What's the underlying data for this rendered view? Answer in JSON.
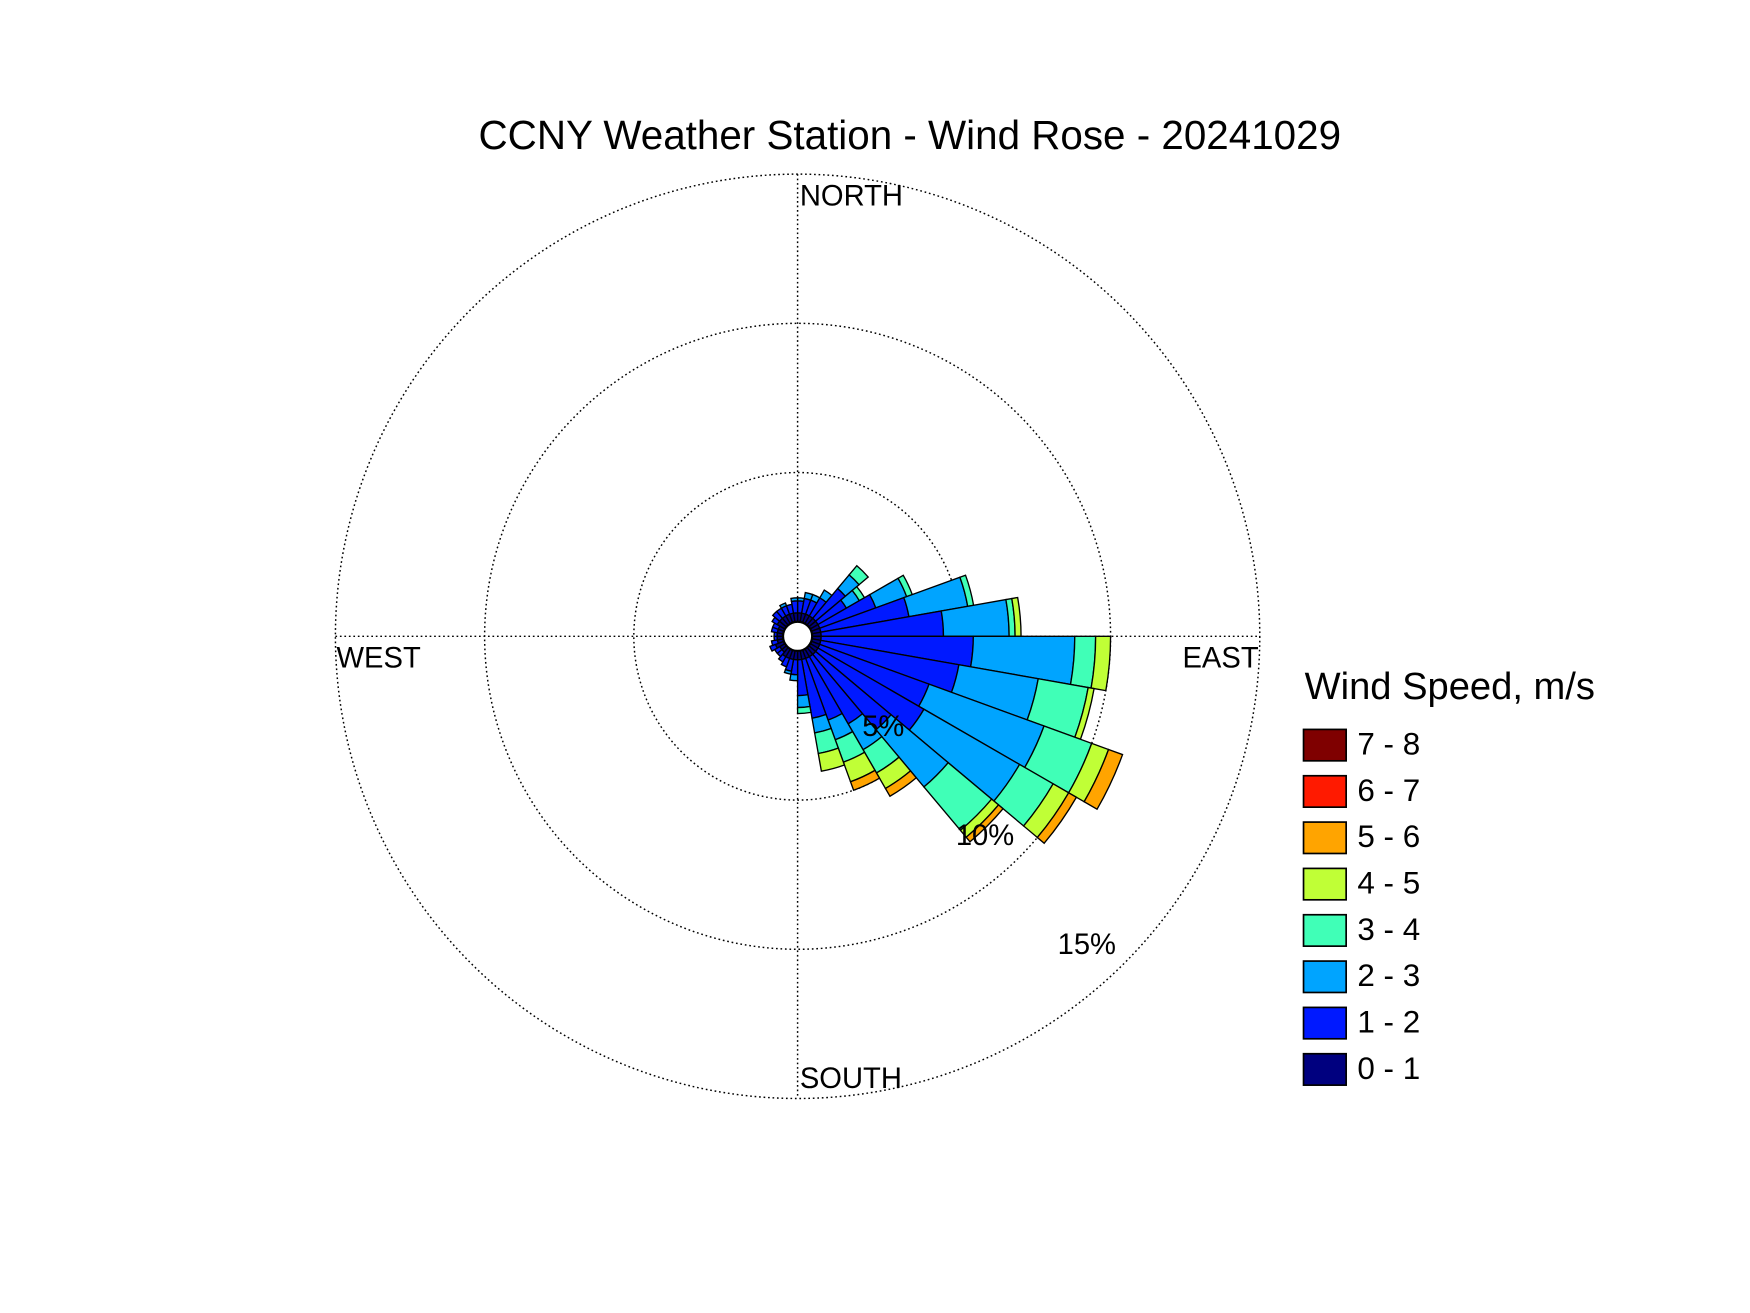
{
  "chart_data": {
    "type": "windrose",
    "title": "CCNY Weather Station - Wind Rose - 20241029",
    "direction_labels": [
      "NORTH",
      "EAST",
      "SOUTH",
      "WEST"
    ],
    "legend_title": "Wind Speed, m/s",
    "directions": [
      5,
      15,
      25,
      35,
      45,
      55,
      65,
      75,
      85,
      95,
      105,
      115,
      125,
      135,
      145,
      155,
      165,
      175,
      185,
      195,
      205,
      215,
      225,
      235,
      245,
      255,
      265,
      275,
      285,
      295,
      305,
      315,
      325,
      335,
      345,
      355
    ],
    "rlim": [
      0,
      15
    ],
    "rticks": [
      {
        "value": 5,
        "label": "5%"
      },
      {
        "value": 10,
        "label": "10%"
      },
      {
        "value": 15,
        "label": "15%"
      }
    ],
    "grid": true,
    "series": [
      {
        "name": "0 - 1",
        "color": "#00007f",
        "values": [
          0.3,
          0.3,
          0.3,
          0.3,
          0.3,
          0.3,
          0.3,
          0.3,
          0.3,
          0.3,
          0.3,
          0.3,
          0.3,
          0.3,
          0.3,
          0.3,
          0.3,
          0.3,
          0.3,
          0.3,
          0.3,
          0.3,
          0.2,
          0.2,
          0.3,
          0.2,
          0.2,
          0.2,
          0.2,
          0.2,
          0.3,
          0.3,
          0.3,
          0.3,
          0.3,
          0.3
        ]
      },
      {
        "name": "1 - 2",
        "color": "#0019ff",
        "values": [
          0.4,
          0.5,
          0.5,
          0.7,
          1.3,
          1.1,
          2.0,
          3.0,
          4.1,
          5.1,
          4.7,
          3.9,
          4.1,
          3.3,
          2.6,
          2.2,
          2.0,
          1.2,
          0.5,
          0.4,
          0.3,
          0.2,
          0.2,
          0.2,
          0.2,
          0.2,
          0.1,
          0.1,
          0.2,
          0.2,
          0.2,
          0.3,
          0.3,
          0.3,
          0.3,
          0.4
        ]
      },
      {
        "name": "2 - 3",
        "color": "#00a4ff",
        "values": [
          0.1,
          0.2,
          0.2,
          0.3,
          0.6,
          0.5,
          1.1,
          2.0,
          2.2,
          3.4,
          2.7,
          4.1,
          3.7,
          2.5,
          1.0,
          0.7,
          0.5,
          0.4,
          0.2,
          0.1,
          0,
          0,
          0,
          0,
          0,
          0,
          0,
          0,
          0,
          0,
          0,
          0,
          0,
          0.1,
          0,
          0.1
        ]
      },
      {
        "name": "3 - 4",
        "color": "#40ffb7",
        "values": [
          0,
          0,
          0,
          0,
          0.4,
          0.2,
          0.2,
          0.2,
          0.2,
          0.7,
          1.7,
          1.7,
          1.3,
          1.9,
          0.9,
          0.8,
          0.7,
          0.2,
          0,
          0,
          0,
          0,
          0,
          0,
          0,
          0,
          0,
          0,
          0,
          0,
          0,
          0,
          0,
          0,
          0,
          0
        ]
      },
      {
        "name": "4 - 5",
        "color": "#c0ff36",
        "values": [
          0,
          0,
          0,
          0,
          0,
          0,
          0,
          0,
          0.2,
          0.5,
          0.2,
          0.6,
          0.6,
          0.3,
          0.6,
          0.7,
          0.6,
          0,
          0,
          0,
          0,
          0,
          0,
          0,
          0,
          0,
          0,
          0,
          0,
          0,
          0,
          0,
          0,
          0,
          0,
          0
        ]
      },
      {
        "name": "5 - 6",
        "color": "#ffa400",
        "values": [
          0,
          0,
          0,
          0,
          0,
          0,
          0,
          0,
          0,
          0,
          0,
          0.5,
          0.3,
          0.2,
          0.3,
          0.3,
          0,
          0,
          0,
          0,
          0,
          0,
          0,
          0,
          0,
          0,
          0,
          0,
          0,
          0,
          0,
          0,
          0,
          0,
          0,
          0
        ]
      },
      {
        "name": "6 - 7",
        "color": "#ff1a00",
        "values": [
          0,
          0,
          0,
          0,
          0,
          0,
          0,
          0,
          0,
          0,
          0,
          0,
          0,
          0,
          0,
          0,
          0,
          0,
          0,
          0,
          0,
          0,
          0,
          0,
          0,
          0,
          0,
          0,
          0,
          0,
          0,
          0,
          0,
          0,
          0,
          0
        ]
      },
      {
        "name": "7 - 8",
        "color": "#7f0000",
        "values": [
          0,
          0,
          0,
          0,
          0,
          0,
          0,
          0,
          0,
          0,
          0,
          0,
          0,
          0,
          0,
          0,
          0,
          0,
          0,
          0,
          0,
          0,
          0,
          0,
          0,
          0,
          0,
          0,
          0,
          0,
          0,
          0,
          0,
          0,
          0,
          0
        ]
      }
    ]
  }
}
